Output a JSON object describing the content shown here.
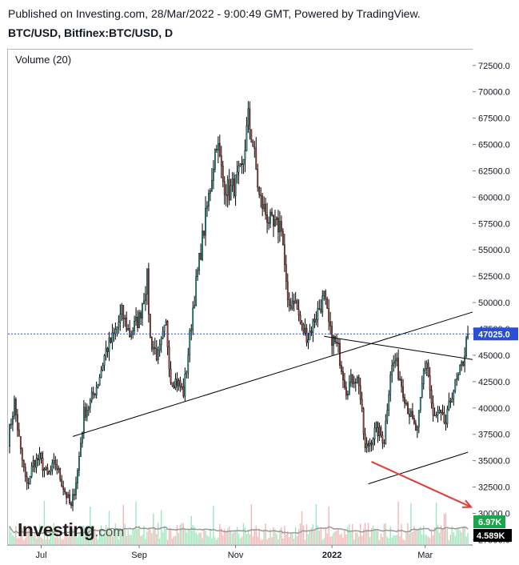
{
  "header": {
    "published": "Published on Investing.com, 28/Mar/2022 - 9:00:49 GMT, Powered by TradingView.",
    "symbol": "BTC/USD, Bitfinex:BTC/USD, D"
  },
  "indicator_label": "Volume (20)",
  "logo": {
    "brand": "Investing",
    "suffix": ".com"
  },
  "colors": {
    "up": "#26a69a",
    "down": "#b03a3a",
    "wick": "#000000",
    "trendline": "#000000",
    "arrow": "#e53935",
    "price_line": "#2a4ed5",
    "price_badge": "#2a4ed5",
    "vol_up": "#9fe5bd",
    "vol_down": "#f2b6b6",
    "vol_ma": "#999999",
    "badge_green": "#1aa64a",
    "badge_black": "#000000"
  },
  "chart_data": {
    "type": "candlestick",
    "x_tick_labels": [
      "Jul",
      "Sep",
      "Nov",
      "2022",
      "Mar"
    ],
    "x_tick_dates": [
      "2021-07-01",
      "2021-09-01",
      "2021-11-01",
      "2022-01-01",
      "2022-03-01"
    ],
    "y_tick_labels": [
      "72500.0",
      "70000.0",
      "67500.0",
      "65000.0",
      "62500.0",
      "60000.0",
      "57500.0",
      "55000.0",
      "52500.0",
      "50000.0",
      "47500.0",
      "45000.0",
      "42500.0",
      "40000.0",
      "37500.0",
      "35000.0",
      "32500.0",
      "30000.0",
      "27500.0"
    ],
    "ylim": [
      27000,
      74000
    ],
    "xlim": [
      "2021-06-10",
      "2022-03-31"
    ],
    "last_price": {
      "value": 47025.0,
      "label": "47025.0"
    },
    "volume": {
      "current": {
        "label": "6.97K"
      },
      "average": {
        "label": "4.589K"
      }
    },
    "ohlc_path": [
      [
        "2021-06-10",
        37000
      ],
      [
        "2021-06-14",
        40500
      ],
      [
        "2021-06-18",
        35800
      ],
      [
        "2021-06-22",
        32500
      ],
      [
        "2021-06-26",
        34800
      ],
      [
        "2021-06-30",
        35200
      ],
      [
        "2021-07-05",
        33500
      ],
      [
        "2021-07-10",
        34800
      ],
      [
        "2021-07-15",
        32500
      ],
      [
        "2021-07-20",
        30500
      ],
      [
        "2021-07-24",
        34000
      ],
      [
        "2021-07-28",
        39500
      ],
      [
        "2021-08-01",
        40500
      ],
      [
        "2021-08-06",
        42500
      ],
      [
        "2021-08-11",
        45500
      ],
      [
        "2021-08-16",
        46800
      ],
      [
        "2021-08-21",
        49000
      ],
      [
        "2021-08-26",
        47000
      ],
      [
        "2021-09-01",
        48500
      ],
      [
        "2021-09-06",
        52300
      ],
      [
        "2021-09-08",
        46500
      ],
      [
        "2021-09-13",
        44800
      ],
      [
        "2021-09-18",
        47800
      ],
      [
        "2021-09-21",
        42800
      ],
      [
        "2021-09-25",
        42500
      ],
      [
        "2021-09-29",
        41500
      ],
      [
        "2021-10-01",
        43800
      ],
      [
        "2021-10-05",
        49500
      ],
      [
        "2021-10-10",
        55000
      ],
      [
        "2021-10-15",
        60000
      ],
      [
        "2021-10-20",
        65500
      ],
      [
        "2021-10-24",
        61500
      ],
      [
        "2021-10-28",
        60500
      ],
      [
        "2021-11-01",
        61300
      ],
      [
        "2021-11-05",
        62500
      ],
      [
        "2021-11-09",
        67500
      ],
      [
        "2021-11-12",
        65000
      ],
      [
        "2021-11-16",
        60000
      ],
      [
        "2021-11-20",
        58500
      ],
      [
        "2021-11-25",
        57000
      ],
      [
        "2021-11-30",
        57500
      ],
      [
        "2021-12-04",
        49500
      ],
      [
        "2021-12-08",
        50500
      ],
      [
        "2021-12-13",
        47500
      ],
      [
        "2021-12-17",
        46800
      ],
      [
        "2021-12-21",
        48500
      ],
      [
        "2021-12-27",
        50500
      ],
      [
        "2021-12-31",
        47000
      ],
      [
        "2022-01-05",
        45500
      ],
      [
        "2022-01-10",
        41800
      ],
      [
        "2022-01-15",
        43000
      ],
      [
        "2022-01-18",
        42500
      ],
      [
        "2022-01-22",
        36000
      ],
      [
        "2022-01-25",
        36800
      ],
      [
        "2022-01-29",
        38000
      ],
      [
        "2022-02-03",
        37000
      ],
      [
        "2022-02-07",
        43500
      ],
      [
        "2022-02-10",
        44500
      ],
      [
        "2022-02-14",
        42300
      ],
      [
        "2022-02-18",
        40000
      ],
      [
        "2022-02-22",
        38200
      ],
      [
        "2022-02-24",
        37700
      ],
      [
        "2022-02-28",
        43500
      ],
      [
        "2022-03-02",
        44400
      ],
      [
        "2022-03-06",
        39000
      ],
      [
        "2022-03-10",
        39300
      ],
      [
        "2022-03-14",
        38500
      ],
      [
        "2022-03-18",
        41500
      ],
      [
        "2022-03-22",
        42800
      ],
      [
        "2022-03-25",
        44500
      ],
      [
        "2022-03-28",
        47025
      ]
    ],
    "trendlines": [
      {
        "name": "rising-support",
        "points": [
          [
            "2021-07-21",
            37300
          ],
          [
            "2022-03-31",
            49100
          ]
        ]
      },
      {
        "name": "descending-resistance",
        "points": [
          [
            "2021-12-27",
            46800
          ],
          [
            "2022-03-31",
            44600
          ]
        ]
      },
      {
        "name": "channel-lower",
        "points": [
          [
            "2022-01-24",
            32800
          ],
          [
            "2022-03-28",
            35800
          ]
        ]
      }
    ],
    "arrow": {
      "from": [
        "2022-01-26",
        34900
      ],
      "to": [
        "2022-03-30",
        30600
      ]
    }
  }
}
